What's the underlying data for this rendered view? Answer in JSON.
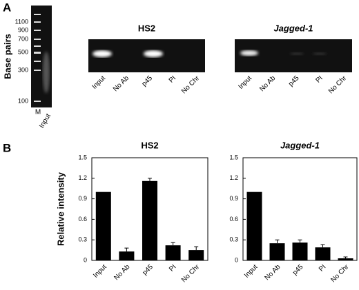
{
  "panel_labels": [
    "A",
    "B"
  ],
  "ladder_gel": {
    "ylabel": "Base pairs",
    "ladder": [
      "1100",
      "900",
      "700",
      "500",
      "300",
      "100"
    ],
    "lanes": [
      "M",
      "Input"
    ]
  },
  "gels": [
    {
      "title": "HS2",
      "lanes": [
        "Input",
        "No Ab",
        "p45",
        "PI",
        "No Chr"
      ]
    },
    {
      "title": "Jagged-1",
      "lanes": [
        "Input",
        "No Ab",
        "p45",
        "PI",
        "No Chr"
      ]
    }
  ],
  "chart_data": [
    {
      "type": "bar",
      "title": "HS2",
      "ylabel": "Relative intensity",
      "categories": [
        "Input",
        "No Ab",
        "p45",
        "PI",
        "No Chr"
      ],
      "values": [
        1.0,
        0.13,
        1.16,
        0.22,
        0.15
      ],
      "errors": [
        null,
        0.05,
        0.04,
        0.04,
        0.05
      ],
      "color": "#000000",
      "ylim": [
        0,
        1.5
      ],
      "yticks": [
        0,
        0.3,
        0.6,
        0.9,
        1.2,
        1.5
      ]
    },
    {
      "type": "bar",
      "title": "Jagged-1",
      "categories": [
        "Input",
        "No Ab",
        "p45",
        "PI",
        "No Chr"
      ],
      "values": [
        1.0,
        0.25,
        0.26,
        0.19,
        0.03
      ],
      "errors": [
        null,
        0.05,
        0.04,
        0.04,
        0.02
      ],
      "color": "#000000",
      "ylim": [
        0,
        1.5
      ],
      "yticks": [
        0,
        0.3,
        0.6,
        0.9,
        1.2,
        1.5
      ]
    }
  ]
}
